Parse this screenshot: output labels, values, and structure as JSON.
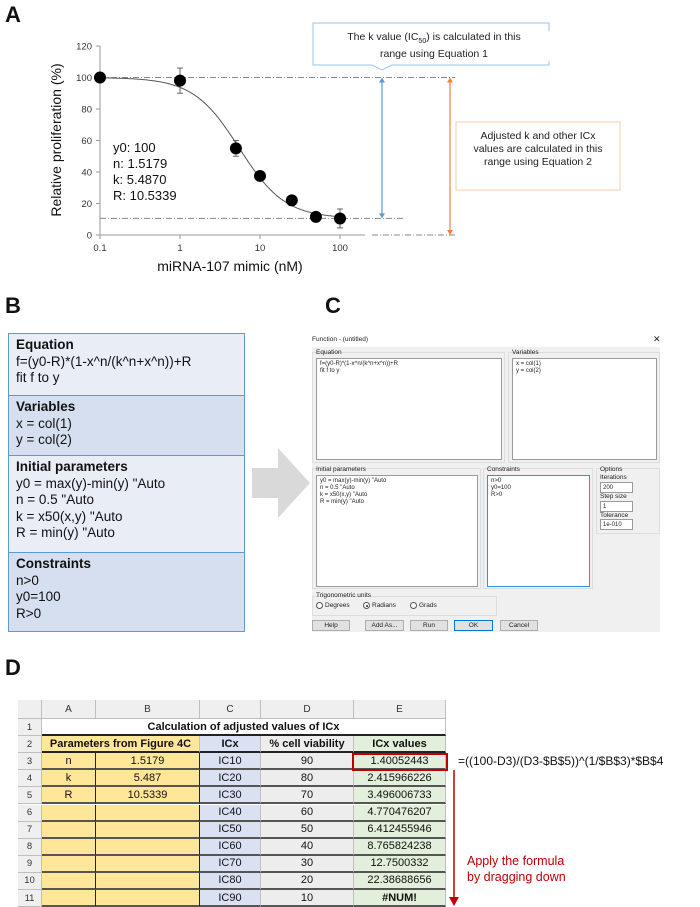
{
  "panels": {
    "a": "A",
    "b": "B",
    "c": "C",
    "d": "D"
  },
  "chart_data": {
    "type": "scatter",
    "xlabel": "miRNA-107 mimic (nM)",
    "ylabel": "Relative proliferation (%)",
    "xscale": "log",
    "xlim": [
      0.1,
      200
    ],
    "ylim": [
      0,
      120
    ],
    "xticks": [
      "0.1",
      "1",
      "10",
      "100"
    ],
    "xtick_values": [
      0.1,
      1,
      10,
      100
    ],
    "yticks": [
      0,
      20,
      40,
      60,
      80,
      100,
      120
    ],
    "grid": false,
    "points": [
      {
        "x": 0.1,
        "y": 100,
        "err": 0
      },
      {
        "x": 1,
        "y": 98,
        "err": 8
      },
      {
        "x": 5,
        "y": 55,
        "err": 5
      },
      {
        "x": 10,
        "y": 37.5,
        "err": 0
      },
      {
        "x": 25,
        "y": 22,
        "err": 0
      },
      {
        "x": 50,
        "y": 11.5,
        "err": 0
      },
      {
        "x": 100,
        "y": 10.5,
        "err": 6
      }
    ],
    "fit": {
      "type": "line",
      "equation": "f=(y0-R)*(1-x^n/(k^n+x^n))+R",
      "y0": 100,
      "n": 1.5179,
      "k": 5.487,
      "R": 10.5339
    },
    "reference_lines_y": [
      100,
      10.5339,
      0
    ],
    "colors": {
      "points": "#000000",
      "fit": "#555555",
      "range1": "#5b9bd5",
      "range2": "#f4813b"
    },
    "params_text": [
      "y0: 100",
      "n: 1.5179",
      "k: 5.4870",
      "R: 10.5339"
    ],
    "annotation_1": {
      "pre": "The k value (IC",
      "sub": "50",
      "post": ") is calculated in this range using Equation 1"
    },
    "annotation_2": "Adjusted k and other ICx values are calculated in this range using Equation 2"
  },
  "panel_b": {
    "sections": [
      {
        "title": "Equation",
        "lines": [
          "f=(y0-R)*(1-x^n/(k^n+x^n))+R",
          "fit f to y"
        ]
      },
      {
        "title": "Variables",
        "lines": [
          "x = col(1)",
          "y = col(2)"
        ]
      },
      {
        "title": "Initial parameters",
        "lines": [
          "y0 = max(y)-min(y) \"Auto",
          "n = 0.5 \"Auto",
          "k = x50(x,y) \"Auto",
          "R = min(y) \"Auto"
        ]
      },
      {
        "title": "Constraints",
        "lines": [
          "n>0",
          "y0=100",
          "R>0"
        ]
      }
    ]
  },
  "dialog": {
    "title": "Function - (untitled)",
    "close": "✕",
    "equation_label": "Equation",
    "equation_text": "f=(y0-R)*(1-x^n/(k^n+x^n))+R\nfit f to y",
    "variables_label": "Variables",
    "variables_text": "x = col(1)\ny = col(2)",
    "initial_label": "Initial parameters",
    "initial_text": "y0 = max(y)-min(y) \"Auto\nn = 0.5 \"Auto\nk = x50(x,y) \"Auto\nR = min(y) \"Auto",
    "constraints_label": "Constraints",
    "constraints_text": "n>0\ny0=100\nR>0",
    "options_label": "Options",
    "iterations_label": "Iterations",
    "iterations": "200",
    "step_label": "Step size",
    "step": "1",
    "tolerance_label": "Tolerance",
    "tolerance": "1e-010",
    "trig_label": "Trigonometric units",
    "trig_options": [
      "Degrees",
      "Radians",
      "Grads"
    ],
    "trig_selected": "Radians",
    "buttons": [
      "Help",
      "Add As...",
      "Run",
      "OK",
      "Cancel"
    ]
  },
  "sheet": {
    "columns": [
      "A",
      "B",
      "C",
      "D",
      "E"
    ],
    "rows": [
      "1",
      "2",
      "3",
      "4",
      "5",
      "6",
      "7",
      "8",
      "9",
      "10",
      "11"
    ],
    "title": "Calculation of adjusted values of ICx",
    "headers": [
      "Parameters from Figure 4C",
      "ICx",
      "% cell viability",
      "ICx values"
    ],
    "params": [
      [
        "n",
        "1.5179"
      ],
      [
        "k",
        "5.487"
      ],
      [
        "R",
        "10.5339"
      ],
      [
        "",
        ""
      ],
      [
        "",
        ""
      ],
      [
        "",
        ""
      ],
      [
        "",
        ""
      ],
      [
        "",
        ""
      ],
      [
        "",
        ""
      ]
    ],
    "icx": [
      "IC10",
      "IC20",
      "IC30",
      "IC40",
      "IC50",
      "IC60",
      "IC70",
      "IC80",
      "IC90"
    ],
    "viability": [
      "90",
      "80",
      "70",
      "60",
      "50",
      "40",
      "30",
      "20",
      "10"
    ],
    "values": [
      "1.40052443",
      "2.415966226",
      "3.496006733",
      "4.770476207",
      "6.412455946",
      "8.765824238",
      "12.7500332",
      "22.38688656",
      "#NUM!"
    ],
    "formula": "=((100-D3)/(D3-$B$5))^(1/$B$3)*$B$4",
    "note": [
      "Apply the formula",
      "by dragging down"
    ],
    "colors": {
      "params": "#ffe699",
      "icx": "#d9e1f2",
      "viability": "#ededed",
      "values": "#e2efda",
      "highlight": "#c00000"
    }
  }
}
